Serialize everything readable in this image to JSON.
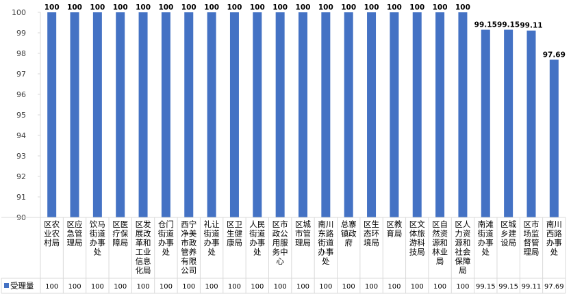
{
  "chart_data": {
    "type": "bar",
    "title": "",
    "xlabel": "",
    "ylabel": "",
    "ylim": [
      90,
      100
    ],
    "yticks": [
      90,
      91,
      92,
      93,
      94,
      95,
      96,
      97,
      98,
      99,
      100
    ],
    "grid": false,
    "legend_position": "table-left",
    "bar_color": "#4472C4",
    "categories": [
      "区农业农村局",
      "区应急管理局",
      "饮马街道办事处",
      "区医疗保障局",
      "区发展改革和工业信息化局",
      "仓门街道办事处",
      "西宁净美市政管养有限公司",
      "礼让街道办事处",
      "区卫生健康局",
      "人民街道办事处",
      "区市政公用服务中心",
      "区城市管理局",
      "南川东路街道办事处",
      "总寨镇政府",
      "区生态环境局",
      "区教育局",
      "区文体旅游科技局",
      "区自然资源和林业局",
      "区人力资源和社会保障局",
      "南滩街道办事处",
      "区城乡建设局",
      "区市场监督管理局",
      "南川西路办事处"
    ],
    "series": [
      {
        "name": "受理量",
        "values": [
          100,
          100,
          100,
          100,
          100,
          100,
          100,
          100,
          100,
          100,
          100,
          100,
          100,
          100,
          100,
          100,
          100,
          100,
          100,
          99.15,
          99.15,
          99.11,
          97.69
        ],
        "labels": [
          "100",
          "100",
          "100",
          "100",
          "100",
          "100",
          "100",
          "100",
          "100",
          "100",
          "100",
          "100",
          "100",
          "100",
          "100",
          "100",
          "100",
          "100",
          "100",
          "99.15",
          "99.15",
          "99.11",
          "97.69"
        ]
      }
    ]
  }
}
